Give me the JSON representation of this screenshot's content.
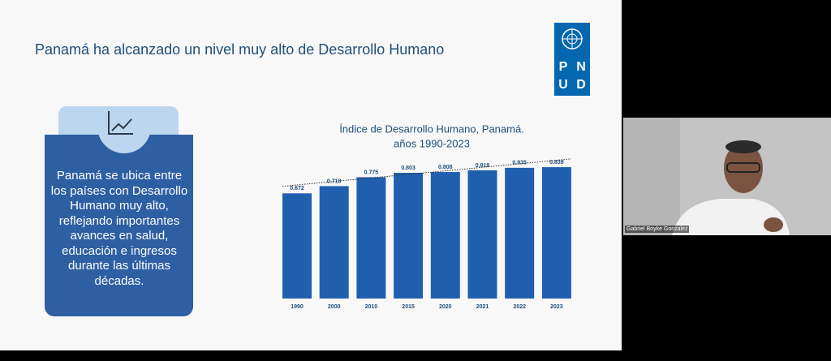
{
  "slide": {
    "title": "Panamá ha alcanzado un nivel muy alto de Desarrollo Humano",
    "logo": [
      "P",
      "N",
      "U",
      "D"
    ],
    "card_text": "Panamá se ubica entre los países con Desarrollo Humano muy alto, reflejando importantes avances en salud, educación e ingresos durante las últimas décadas."
  },
  "chart_data": {
    "type": "bar",
    "title": "Índice de Desarrollo Humano, Panamá.",
    "subtitle": "años 1990-2023",
    "categories": [
      "1990",
      "2000",
      "2010",
      "2015",
      "2020",
      "2021",
      "2022",
      "2023"
    ],
    "values": [
      0.672,
      0.718,
      0.775,
      0.803,
      0.808,
      0.819,
      0.835,
      0.839
    ],
    "color": "#1f5fae",
    "trendline": true
  },
  "participant": {
    "name": "Gabriel Boyke Gonzalez"
  }
}
